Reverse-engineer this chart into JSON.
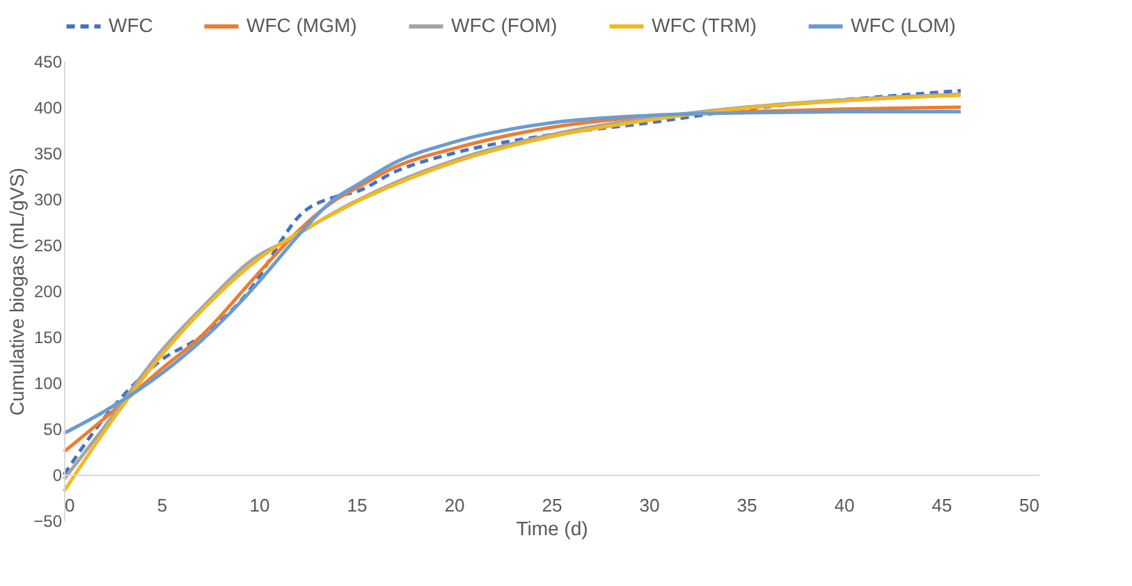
{
  "chart_data": {
    "type": "line",
    "xlabel": "Time (d)",
    "ylabel": "Cumulative biogas (mL/gVS)",
    "xlim": [
      0,
      50
    ],
    "xticks": [
      0,
      5,
      10,
      15,
      20,
      25,
      30,
      35,
      40,
      45,
      50
    ],
    "ylim": [
      -50,
      450
    ],
    "yticks": [
      -50,
      0,
      50,
      100,
      150,
      200,
      250,
      300,
      350,
      400,
      450
    ],
    "grid": false,
    "legend": "top",
    "x": [
      0,
      2,
      5,
      7,
      10,
      11,
      12,
      14,
      15,
      17,
      20,
      25,
      30,
      35,
      40,
      46
    ],
    "series": [
      {
        "name": "WFC",
        "color": "#4472c4",
        "line_style": "dashed",
        "values": [
          0,
          60,
          125,
          150,
          215,
          250,
          280,
          303,
          308,
          330,
          350,
          370,
          383,
          398,
          408,
          418
        ]
      },
      {
        "name": "WFC (MGM)",
        "color": "#ed7d31",
        "line_style": "solid",
        "values": [
          25,
          60,
          115,
          150,
          220,
          243,
          265,
          300,
          312,
          335,
          355,
          378,
          390,
          395,
          398,
          400
        ]
      },
      {
        "name": "WFC (FOM)",
        "color": "#a5a5a5",
        "line_style": "solid",
        "values": [
          -5,
          50,
          135,
          180,
          239,
          250,
          262,
          287,
          298,
          318,
          342,
          370,
          388,
          400,
          408,
          414
        ]
      },
      {
        "name": "WFC (TRM)",
        "color": "#f2b822",
        "line_style": "solid",
        "values": [
          -18,
          45,
          130,
          177,
          235,
          250,
          263,
          286,
          297,
          316,
          340,
          368,
          386,
          399,
          407,
          413
        ]
      },
      {
        "name": "WFC (LOM)",
        "color": "#6b9bd1",
        "line_style": "solid",
        "values": [
          45,
          68,
          110,
          145,
          210,
          235,
          260,
          302,
          315,
          340,
          362,
          383,
          391,
          394,
          395,
          395
        ]
      }
    ]
  }
}
